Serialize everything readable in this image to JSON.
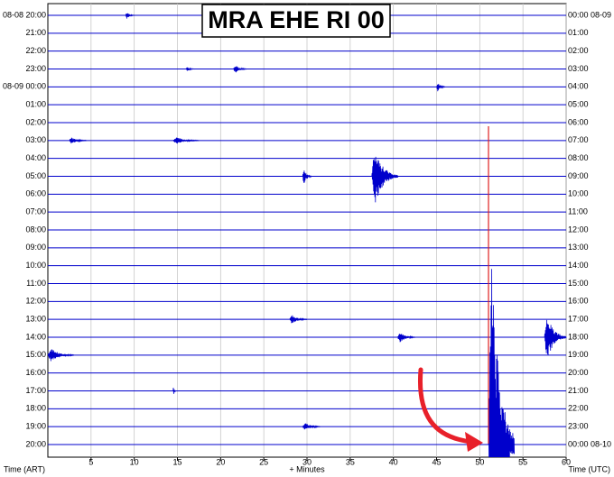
{
  "chart_data": {
    "type": "helicorder",
    "title": "MRA EHE RI 00",
    "left_labels": [
      "08-08 20:00",
      "21:00",
      "22:00",
      "23:00",
      "08-09 00:00",
      "01:00",
      "02:00",
      "03:00",
      "04:00",
      "05:00",
      "06:00",
      "07:00",
      "08:00",
      "09:00",
      "10:00",
      "11:00",
      "12:00",
      "13:00",
      "14:00",
      "15:00",
      "16:00",
      "17:00",
      "18:00",
      "19:00",
      "20:00"
    ],
    "right_labels": [
      "00:00 08-09",
      "01:00",
      "02:00",
      "03:00",
      "04:00",
      "05:00",
      "06:00",
      "07:00",
      "08:00",
      "09:00",
      "10:00",
      "11:00",
      "12:00",
      "13:00",
      "14:00",
      "15:00",
      "16:00",
      "17:00",
      "18:00",
      "19:00",
      "20:00",
      "21:00",
      "22:00",
      "23:00",
      "00:00 08-10"
    ],
    "x_label_left": "Time (ART)",
    "x_label": "+ Minutes",
    "x_label_right": "Time (UTC)",
    "xlim": [
      0,
      60
    ],
    "xticks": [
      5,
      10,
      15,
      20,
      25,
      30,
      35,
      40,
      45,
      50,
      55,
      60
    ],
    "color": "#0000cc",
    "grid": true,
    "events": [
      {
        "row": 0,
        "minute": 9,
        "duration": 1,
        "amplitude": 0.3
      },
      {
        "row": 3,
        "minute": 16,
        "duration": 1,
        "amplitude": 0.2
      },
      {
        "row": 3,
        "minute": 21.5,
        "duration": 1.5,
        "amplitude": 0.4
      },
      {
        "row": 4,
        "minute": 45,
        "duration": 1,
        "amplitude": 0.4
      },
      {
        "row": 7,
        "minute": 2.5,
        "duration": 2,
        "amplitude": 0.3
      },
      {
        "row": 7,
        "minute": 14.5,
        "duration": 3,
        "amplitude": 0.3
      },
      {
        "row": 9,
        "minute": 29.5,
        "duration": 1,
        "amplitude": 0.8
      },
      {
        "row": 9,
        "minute": 37.5,
        "duration": 3,
        "amplitude": 2.5
      },
      {
        "row": 17,
        "minute": 28,
        "duration": 2,
        "amplitude": 0.4
      },
      {
        "row": 18,
        "minute": 40.5,
        "duration": 2,
        "amplitude": 0.5
      },
      {
        "row": 18,
        "minute": 57.5,
        "duration": 3,
        "amplitude": 2
      },
      {
        "row": 19,
        "minute": 0,
        "duration": 3,
        "amplitude": 0.6
      },
      {
        "row": 21,
        "minute": 14.5,
        "duration": 0.3,
        "amplitude": 0.5
      },
      {
        "row": 23,
        "minute": 29.5,
        "duration": 2,
        "amplitude": 0.4
      },
      {
        "row": 24,
        "minute": 51,
        "duration": 3,
        "amplitude": 17.5
      }
    ]
  }
}
